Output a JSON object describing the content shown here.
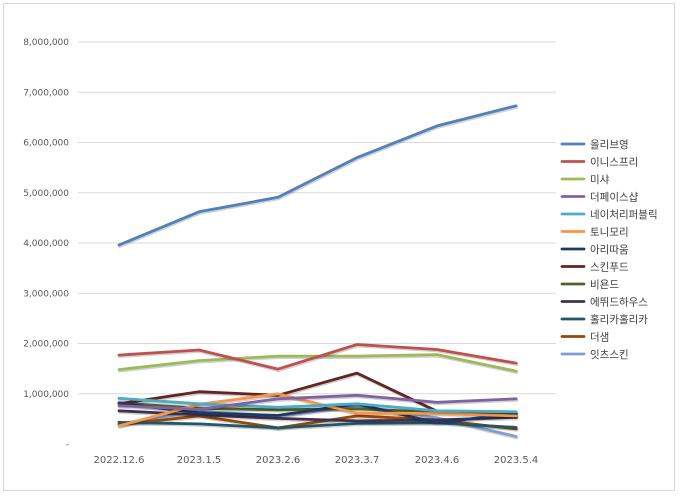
{
  "chart_data": {
    "type": "line",
    "title": "",
    "xlabel": "",
    "ylabel": "",
    "categories": [
      "2022.12.6",
      "2023.1.5",
      "2023.2.6",
      "2023.3.7",
      "2023.4.6",
      "2023.5.4"
    ],
    "ylim": [
      0,
      8000000
    ],
    "yticks": [
      {
        "value": 0,
        "label": "-"
      },
      {
        "value": 1000000,
        "label": "1,000,000"
      },
      {
        "value": 2000000,
        "label": "2,000,000"
      },
      {
        "value": 3000000,
        "label": "3,000,000"
      },
      {
        "value": 4000000,
        "label": "4,000,000"
      },
      {
        "value": 5000000,
        "label": "5,000,000"
      },
      {
        "value": 6000000,
        "label": "6,000,000"
      },
      {
        "value": 7000000,
        "label": "7,000,000"
      },
      {
        "value": 8000000,
        "label": "8,000,000"
      }
    ],
    "grid": true,
    "legend_position": "right",
    "series": [
      {
        "name": "올리브영",
        "color": "#4f81bd",
        "values": [
          3960000,
          4620000,
          4910000,
          5700000,
          6330000,
          6730000
        ]
      },
      {
        "name": "이니스프리",
        "color": "#c0504d",
        "values": [
          1770000,
          1870000,
          1490000,
          1980000,
          1880000,
          1610000
        ]
      },
      {
        "name": "미샤",
        "color": "#9bbb59",
        "values": [
          1480000,
          1660000,
          1750000,
          1750000,
          1780000,
          1450000
        ]
      },
      {
        "name": "더페이스샵",
        "color": "#8064a2",
        "values": [
          760000,
          690000,
          900000,
          970000,
          830000,
          900000
        ]
      },
      {
        "name": "네이처리퍼블릭",
        "color": "#4bacc6",
        "values": [
          910000,
          800000,
          730000,
          800000,
          660000,
          640000
        ]
      },
      {
        "name": "토니모리",
        "color": "#f79646",
        "values": [
          360000,
          790000,
          1000000,
          610000,
          610000,
          560000
        ]
      },
      {
        "name": "아리따움",
        "color": "#1f3864",
        "values": [
          810000,
          620000,
          570000,
          800000,
          420000,
          610000
        ]
      },
      {
        "name": "스킨푸드",
        "color": "#632523",
        "values": [
          800000,
          1040000,
          970000,
          1410000,
          650000,
          560000
        ]
      },
      {
        "name": "비욘드",
        "color": "#4f6228",
        "values": [
          820000,
          710000,
          680000,
          700000,
          630000,
          610000
        ]
      },
      {
        "name": "에뛰드하우스",
        "color": "#3f3151",
        "values": [
          660000,
          580000,
          510000,
          460000,
          480000,
          530000
        ]
      },
      {
        "name": "홀리카홀리카",
        "color": "#215868",
        "values": [
          430000,
          400000,
          320000,
          410000,
          420000,
          330000
        ]
      },
      {
        "name": "더샘",
        "color": "#974706",
        "values": [
          380000,
          560000,
          320000,
          560000,
          480000,
          300000
        ]
      },
      {
        "name": "잇츠스킨",
        "color": "#7f9fcf",
        "values": [
          400000,
          650000,
          560000,
          760000,
          520000,
          150000
        ]
      }
    ]
  }
}
